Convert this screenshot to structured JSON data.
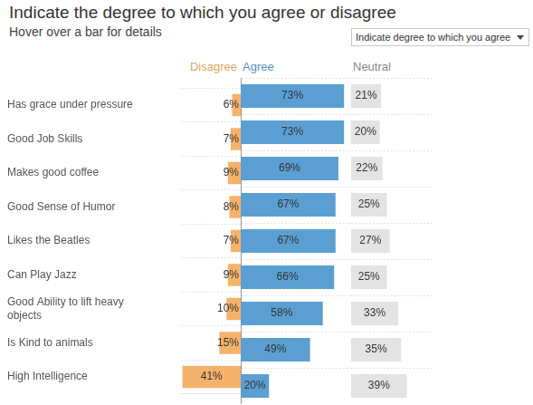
{
  "dropdown": {
    "label": "Indicate degree to which you agree"
  },
  "chart_data": {
    "type": "bar",
    "orientation": "horizontal",
    "title": "Indicate the degree to which you agree or disagree",
    "subtitle": "Hover over a bar for details",
    "categories": [
      "Has grace under pressure",
      "Good Job Skills",
      "Makes good coffee",
      "Good Sense of Humor",
      "Likes the Beatles",
      "Can Play Jazz",
      "Good Ability to lift heavy objects",
      "Is Kind to animals",
      "High Intelligence"
    ],
    "series": [
      {
        "name": "Disagree",
        "color": "#f5b26b",
        "values": [
          6,
          7,
          9,
          8,
          7,
          9,
          10,
          15,
          41
        ],
        "value_labels": [
          "6%",
          "7%",
          "9%",
          "8%",
          "7%",
          "9%",
          "10%",
          "15%",
          "41%"
        ],
        "xlim": [
          0,
          42
        ]
      },
      {
        "name": "Agree",
        "color": "#5b9fd2",
        "values": [
          73,
          73,
          69,
          67,
          67,
          66,
          58,
          49,
          20
        ],
        "value_labels": [
          "73%",
          "73%",
          "69%",
          "67%",
          "67%",
          "66%",
          "58%",
          "49%",
          "20%"
        ],
        "xlim": [
          0,
          78
        ]
      },
      {
        "name": "Neutral",
        "color": "#e3e3e3",
        "values": [
          21,
          20,
          22,
          25,
          27,
          25,
          33,
          35,
          39
        ],
        "value_labels": [
          "21%",
          "20%",
          "22%",
          "25%",
          "27%",
          "25%",
          "33%",
          "35%",
          "39%"
        ],
        "xlim": [
          0,
          57
        ]
      }
    ],
    "data_labels": true,
    "tick_labels": "y",
    "grid": true
  }
}
